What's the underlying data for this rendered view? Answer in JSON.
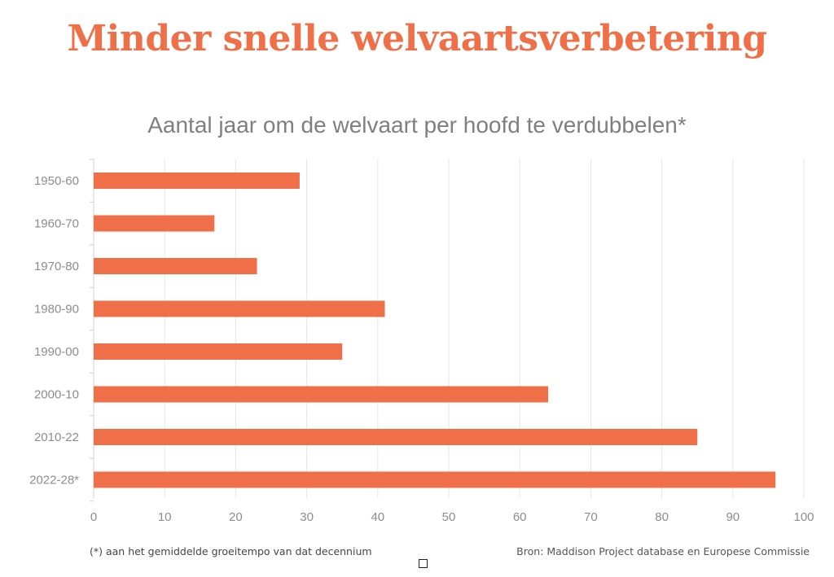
{
  "title": "Minder snelle welvaartsverbetering",
  "subtitle": "Aantal jaar om de welvaart per hoofd te verdubbelen*",
  "footnote": "(*) aan het gemiddelde groeitempo van dat decennium",
  "source": "Bron: Maddison Project database en Europese Commissie",
  "chart_data": {
    "type": "bar",
    "orientation": "horizontal",
    "categories": [
      "1950-60",
      "1960-70",
      "1970-80",
      "1980-90",
      "1990-00",
      "2000-10",
      "2010-22",
      "2022-28*"
    ],
    "values": [
      29,
      17,
      23,
      41,
      35,
      64,
      85,
      96
    ],
    "xlim": [
      0,
      100
    ],
    "xticks": [
      "0",
      "10",
      "20",
      "30",
      "40",
      "50",
      "60",
      "70",
      "80",
      "90",
      "100"
    ],
    "grid": "vertical",
    "legend": "none",
    "bar_color": "#ef7048",
    "grid_color": "#e6e6e6"
  }
}
